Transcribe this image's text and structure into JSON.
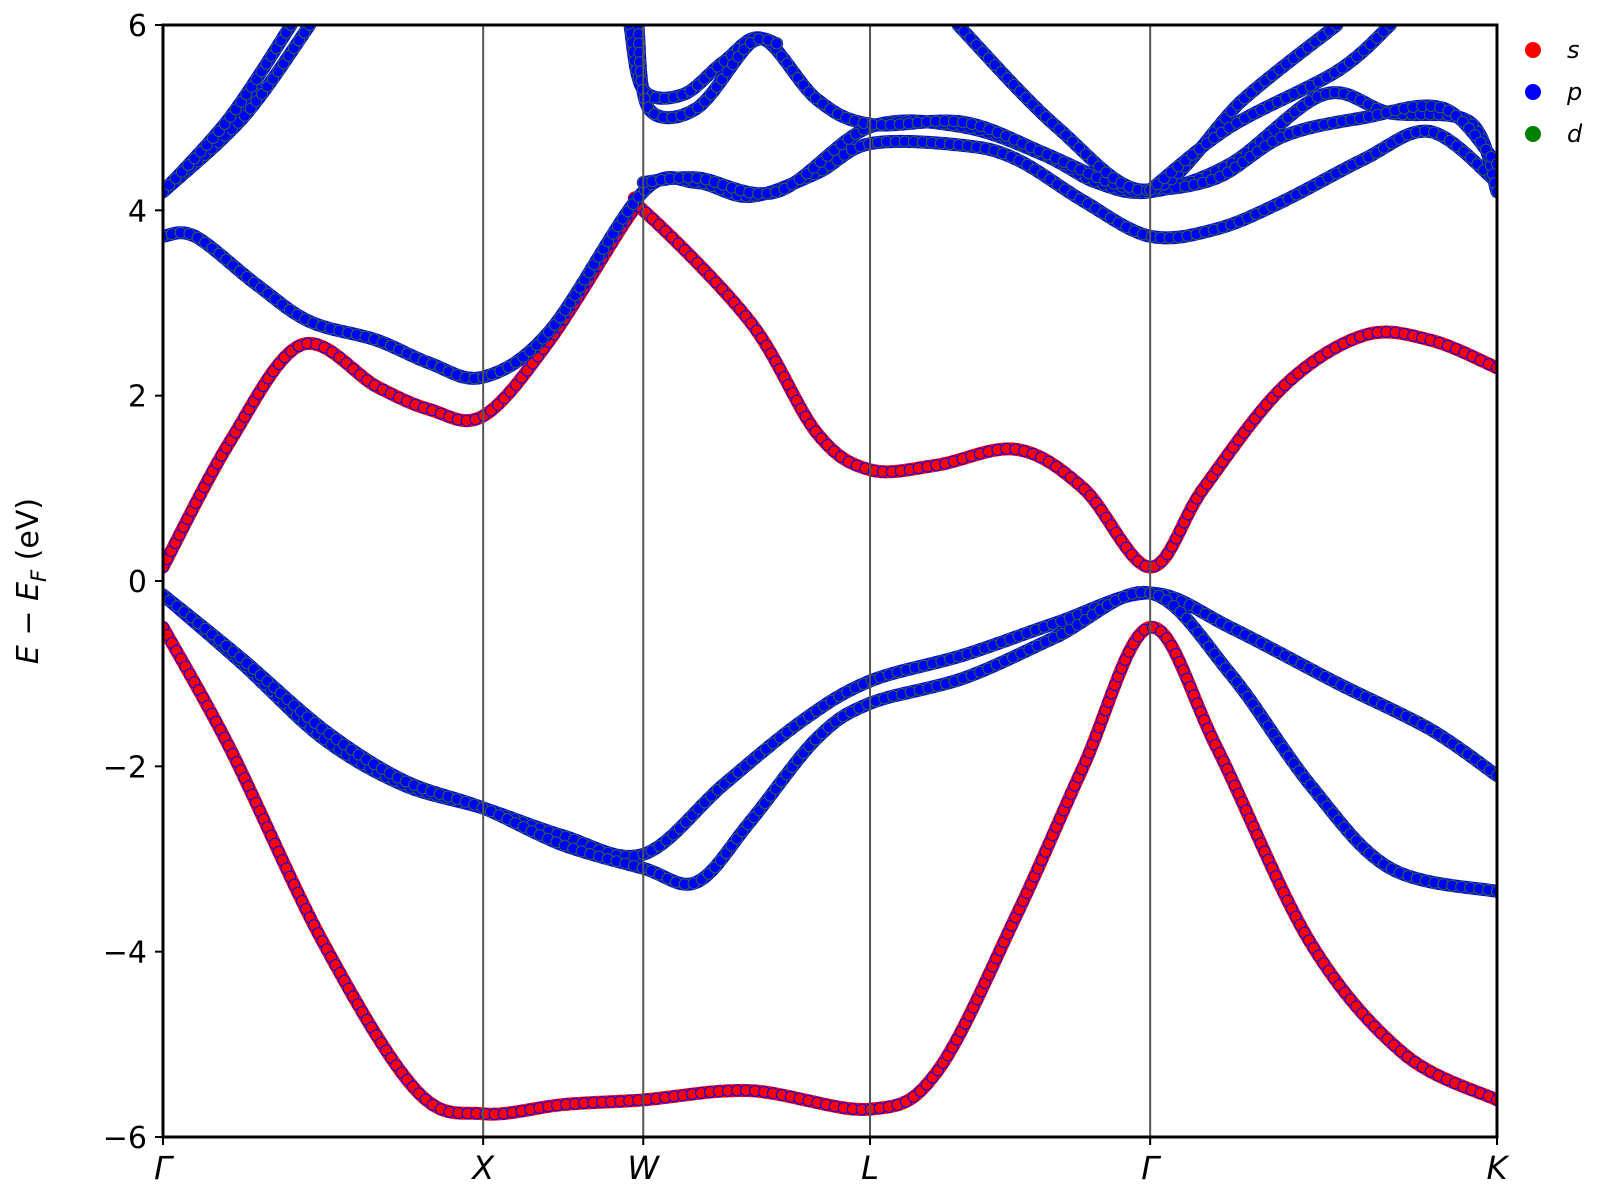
{
  "chart_data": {
    "type": "scatter",
    "title": "",
    "xlabel": "",
    "ylabel_main": "E − E",
    "ylabel_sub": "F",
    "ylabel_unit": " (eV)",
    "ylim": [
      -6,
      6
    ],
    "xlim": [
      0,
      5.0
    ],
    "y_ticks": [
      -6,
      -4,
      -2,
      0,
      2,
      4,
      6
    ],
    "y_tick_labels": [
      "−6",
      "−4",
      "−2",
      "0",
      "2",
      "4",
      "6"
    ],
    "kpoints": [
      {
        "label": "Γ",
        "x": 0.0
      },
      {
        "label": "X",
        "x": 1.2
      },
      {
        "label": "W",
        "x": 1.8
      },
      {
        "label": "L",
        "x": 2.65
      },
      {
        "label": "Γ",
        "x": 3.7
      },
      {
        "label": "K",
        "x": 5.0
      }
    ],
    "legend": {
      "placement": "top-right",
      "entries": [
        {
          "label": "s",
          "color": "#ff0000"
        },
        {
          "label": "p",
          "color": "#0000ff"
        },
        {
          "label": "d",
          "color": "#008000"
        }
      ]
    },
    "bands": [
      {
        "name": "band-1",
        "color": "#ff0000",
        "weight": 9,
        "points": [
          [
            0,
            0.15
          ],
          [
            0.25,
            1.5
          ],
          [
            0.52,
            2.55
          ],
          [
            0.8,
            2.1
          ],
          [
            1.0,
            1.85
          ],
          [
            1.2,
            1.78
          ],
          [
            1.45,
            2.6
          ],
          [
            1.75,
            3.95
          ],
          [
            1.8,
            4.0
          ],
          [
            2.2,
            2.8
          ],
          [
            2.45,
            1.6
          ],
          [
            2.65,
            1.2
          ],
          [
            2.9,
            1.25
          ],
          [
            3.2,
            1.42
          ],
          [
            3.45,
            1.0
          ],
          [
            3.7,
            0.15
          ],
          [
            3.9,
            1.0
          ],
          [
            4.2,
            2.1
          ],
          [
            4.5,
            2.65
          ],
          [
            4.75,
            2.6
          ],
          [
            5.0,
            2.3
          ]
        ]
      },
      {
        "name": "band-2",
        "color": "#0000ff",
        "weight": 9,
        "points": [
          [
            0,
            3.72
          ],
          [
            0.12,
            3.72
          ],
          [
            0.35,
            3.2
          ],
          [
            0.55,
            2.8
          ],
          [
            0.8,
            2.6
          ],
          [
            1.0,
            2.35
          ],
          [
            1.2,
            2.2
          ],
          [
            1.45,
            2.7
          ],
          [
            1.8,
            4.2
          ],
          [
            2.0,
            4.3
          ],
          [
            2.2,
            4.15
          ],
          [
            2.45,
            4.4
          ],
          [
            2.65,
            4.72
          ],
          [
            3.0,
            4.7
          ],
          [
            3.2,
            4.55
          ],
          [
            3.45,
            4.1
          ],
          [
            3.7,
            3.72
          ],
          [
            3.95,
            3.8
          ],
          [
            4.2,
            4.1
          ],
          [
            4.5,
            4.55
          ],
          [
            4.75,
            4.85
          ],
          [
            5.0,
            4.3
          ]
        ]
      },
      {
        "name": "band-3",
        "color": "#0000ff",
        "weight": 9,
        "points": [
          [
            0,
            4.2
          ],
          [
            0.3,
            5.0
          ],
          [
            0.55,
            6.0
          ]
        ]
      },
      {
        "name": "band-4",
        "color": "#0000ff",
        "weight": 9,
        "points": [
          [
            0,
            4.2
          ],
          [
            0.25,
            5.0
          ],
          [
            0.48,
            6.0
          ]
        ]
      },
      {
        "name": "band-5",
        "color": "#0000ff",
        "weight": 9,
        "points": [
          [
            1.8,
            4.3
          ],
          [
            2.0,
            4.35
          ],
          [
            2.3,
            4.2
          ],
          [
            2.65,
            4.9
          ],
          [
            3.0,
            4.9
          ],
          [
            3.3,
            4.6
          ],
          [
            3.5,
            4.3
          ],
          [
            3.7,
            4.2
          ],
          [
            4.0,
            4.5
          ],
          [
            4.35,
            5.25
          ],
          [
            4.6,
            5.05
          ],
          [
            4.9,
            4.95
          ],
          [
            5.0,
            4.2
          ]
        ]
      },
      {
        "name": "band-6",
        "color": "#0000ff",
        "weight": 9,
        "points": [
          [
            1.75,
            6.0
          ],
          [
            1.8,
            5.3
          ],
          [
            1.95,
            5.25
          ],
          [
            2.1,
            5.6
          ],
          [
            2.25,
            5.85
          ],
          [
            2.45,
            5.2
          ],
          [
            2.65,
            4.93
          ],
          [
            3.0,
            4.95
          ],
          [
            3.3,
            4.62
          ],
          [
            3.55,
            4.3
          ],
          [
            3.7,
            4.22
          ],
          [
            3.95,
            4.35
          ],
          [
            4.2,
            4.8
          ],
          [
            4.5,
            5.0
          ],
          [
            4.8,
            5.1
          ],
          [
            5.0,
            4.5
          ]
        ]
      },
      {
        "name": "band-7",
        "color": "#0000ff",
        "weight": 9,
        "points": [
          [
            1.78,
            6.0
          ],
          [
            1.82,
            5.1
          ],
          [
            2.0,
            5.1
          ],
          [
            2.2,
            5.8
          ],
          [
            2.3,
            5.8
          ]
        ]
      },
      {
        "name": "band-8",
        "color": "#0000ff",
        "weight": 9,
        "points": [
          [
            2.98,
            6.0
          ],
          [
            3.35,
            4.9
          ],
          [
            3.7,
            4.22
          ],
          [
            4.05,
            5.2
          ],
          [
            4.4,
            6.0
          ]
        ]
      },
      {
        "name": "band-9",
        "color": "#0000ff",
        "weight": 9,
        "points": [
          [
            3.7,
            4.22
          ],
          [
            4.0,
            4.9
          ],
          [
            4.4,
            5.5
          ],
          [
            4.6,
            6.0
          ]
        ]
      },
      {
        "name": "band-10",
        "color": "#0000ff",
        "weight": 9,
        "points": [
          [
            0,
            -0.15
          ],
          [
            0.3,
            -0.9
          ],
          [
            0.6,
            -1.7
          ],
          [
            0.9,
            -2.2
          ],
          [
            1.2,
            -2.45
          ],
          [
            1.5,
            -2.75
          ],
          [
            1.8,
            -2.95
          ],
          [
            2.1,
            -2.2
          ],
          [
            2.4,
            -1.5
          ],
          [
            2.65,
            -1.08
          ],
          [
            3.0,
            -0.8
          ],
          [
            3.35,
            -0.45
          ],
          [
            3.7,
            -0.13
          ],
          [
            4.0,
            -0.5
          ],
          [
            4.4,
            -1.1
          ],
          [
            4.75,
            -1.6
          ],
          [
            5.0,
            -2.1
          ]
        ]
      },
      {
        "name": "band-11",
        "color": "#0000ff",
        "weight": 9,
        "points": [
          [
            0,
            -0.15
          ],
          [
            0.3,
            -0.85
          ],
          [
            0.6,
            -1.6
          ],
          [
            0.9,
            -2.15
          ],
          [
            1.2,
            -2.45
          ],
          [
            1.5,
            -2.85
          ],
          [
            1.8,
            -3.1
          ],
          [
            2.0,
            -3.25
          ],
          [
            2.2,
            -2.6
          ],
          [
            2.45,
            -1.7
          ],
          [
            2.65,
            -1.32
          ],
          [
            3.0,
            -1.05
          ],
          [
            3.35,
            -0.6
          ],
          [
            3.7,
            -0.13
          ],
          [
            4.0,
            -1.0
          ],
          [
            4.3,
            -2.2
          ],
          [
            4.6,
            -3.1
          ],
          [
            5.0,
            -3.35
          ]
        ]
      },
      {
        "name": "band-12",
        "color": "#ff0000",
        "weight": 9,
        "points": [
          [
            0,
            -0.5
          ],
          [
            0.25,
            -1.8
          ],
          [
            0.6,
            -3.9
          ],
          [
            0.95,
            -5.5
          ],
          [
            1.2,
            -5.75
          ],
          [
            1.5,
            -5.65
          ],
          [
            1.8,
            -5.6
          ],
          [
            2.2,
            -5.5
          ],
          [
            2.65,
            -5.7
          ],
          [
            2.9,
            -5.3
          ],
          [
            3.2,
            -3.6
          ],
          [
            3.45,
            -2.0
          ],
          [
            3.7,
            -0.5
          ],
          [
            3.95,
            -1.8
          ],
          [
            4.3,
            -3.9
          ],
          [
            4.65,
            -5.1
          ],
          [
            5.0,
            -5.6
          ]
        ]
      }
    ]
  }
}
